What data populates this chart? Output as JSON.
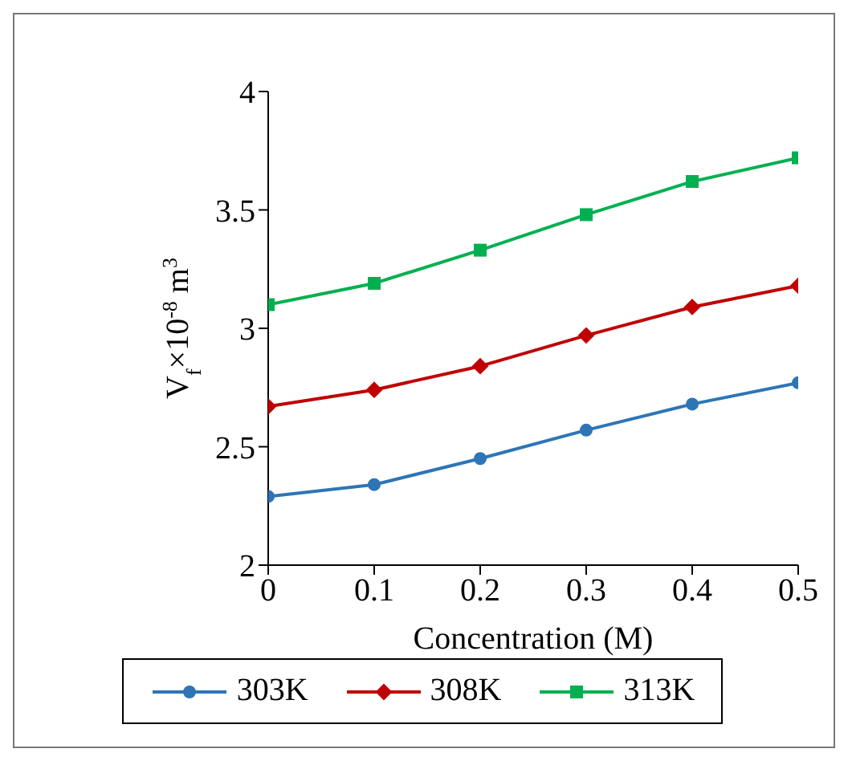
{
  "chart_data": {
    "type": "line",
    "xlabel": "Concentration (M)",
    "ylabel": "V$_{f}$×10$^{-8}$ m$^{3}$",
    "x": [
      0,
      0.1,
      0.2,
      0.3,
      0.4,
      0.5
    ],
    "xlim": [
      0,
      0.5
    ],
    "xticks": [
      0,
      0.1,
      0.2,
      0.3,
      0.4,
      0.5
    ],
    "ylim": [
      2,
      4
    ],
    "yticks": [
      2,
      2.5,
      3,
      3.5,
      4
    ],
    "grid": false,
    "legend": "bottom",
    "series": [
      {
        "name": "303K",
        "color": "#2e75b6",
        "marker": "circle",
        "values": [
          2.29,
          2.34,
          2.45,
          2.57,
          2.68,
          2.77
        ]
      },
      {
        "name": "308K",
        "color": "#c00000",
        "marker": "diamond",
        "values": [
          2.67,
          2.74,
          2.84,
          2.97,
          3.09,
          3.18
        ]
      },
      {
        "name": "313K",
        "color": "#00b050",
        "marker": "square",
        "values": [
          3.1,
          3.19,
          3.33,
          3.48,
          3.62,
          3.72
        ]
      }
    ]
  }
}
